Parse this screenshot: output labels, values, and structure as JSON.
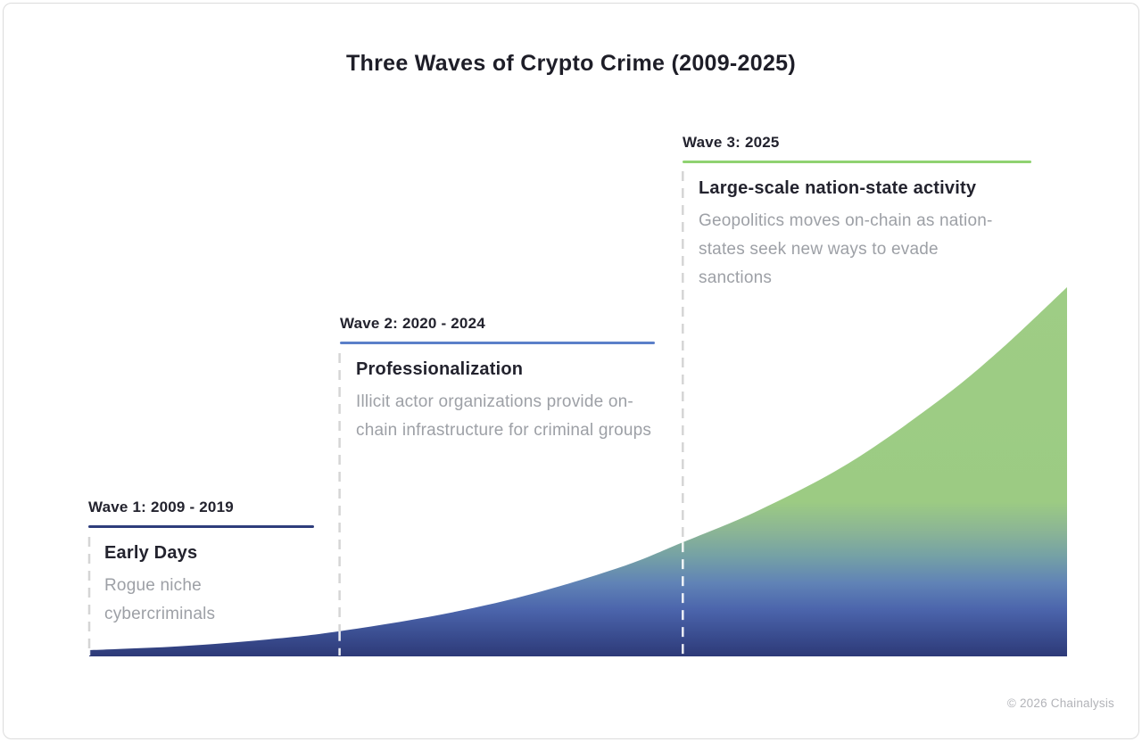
{
  "title": "Three Waves of Crypto Crime (2009-2025)",
  "waves": [
    {
      "label": "Wave 1: 2009 - 2019",
      "heading": "Early Days",
      "description": "Rogue niche cybercriminals",
      "accent_color": "#2e3d7c"
    },
    {
      "label": "Wave 2: 2020 - 2024",
      "heading": "Professionalization",
      "description": "Illicit actor organizations provide on-chain infrastructure for criminal groups",
      "accent_color": "#5b7fc9"
    },
    {
      "label": "Wave 3: 2025",
      "heading": "Large-scale nation-state activity",
      "description": "Geopolitics moves on-chain as nation-states seek new ways to evade sanctions",
      "accent_color": "#8fd271"
    }
  ],
  "footer": {
    "copyright": "© 2026 Chainalysis"
  },
  "chart_data": {
    "type": "area",
    "title": "Three Waves of Crypto Crime (2009-2025)",
    "xlabel": "",
    "ylabel": "",
    "x_range_years": [
      2009,
      2025
    ],
    "grid": false,
    "legend": false,
    "axes_visible": false,
    "description": "Stylized exponential growth curve of crypto crime intensity from 2009 to 2025, divided into three waves by dashed vertical markers.",
    "curve_points": [
      {
        "t": 0.0,
        "v": 0.017
      },
      {
        "t": 0.091,
        "v": 0.027
      },
      {
        "t": 0.183,
        "v": 0.046
      },
      {
        "t": 0.256,
        "v": 0.068
      },
      {
        "t": 0.365,
        "v": 0.116
      },
      {
        "t": 0.457,
        "v": 0.172
      },
      {
        "t": 0.548,
        "v": 0.246
      },
      {
        "t": 0.607,
        "v": 0.309
      },
      {
        "t": 0.685,
        "v": 0.396
      },
      {
        "t": 0.776,
        "v": 0.522
      },
      {
        "t": 0.868,
        "v": 0.691
      },
      {
        "t": 0.932,
        "v": 0.831
      },
      {
        "t": 1.0,
        "v": 1.0
      }
    ],
    "wave_markers": [
      {
        "t": 0.0,
        "wave": "Wave 1",
        "years": "2009 - 2019"
      },
      {
        "t": 0.256,
        "wave": "Wave 2",
        "years": "2020 - 2024"
      },
      {
        "t": 0.607,
        "wave": "Wave 3",
        "years": "2025"
      }
    ],
    "fill_gradient": [
      {
        "offset": 0.0,
        "color": "#9ecd85"
      },
      {
        "offset": 0.58,
        "color": "#9ccb83"
      },
      {
        "offset": 0.66,
        "color": "#8bb595"
      },
      {
        "offset": 0.73,
        "color": "#74a0a6"
      },
      {
        "offset": 0.8,
        "color": "#6083b6"
      },
      {
        "offset": 0.87,
        "color": "#4c65ac"
      },
      {
        "offset": 0.94,
        "color": "#3a4d90"
      },
      {
        "offset": 1.0,
        "color": "#2d3977"
      }
    ],
    "marker_line_color_over_background": "#d5d5d5",
    "marker_line_color_over_fill": "#ffffff"
  }
}
